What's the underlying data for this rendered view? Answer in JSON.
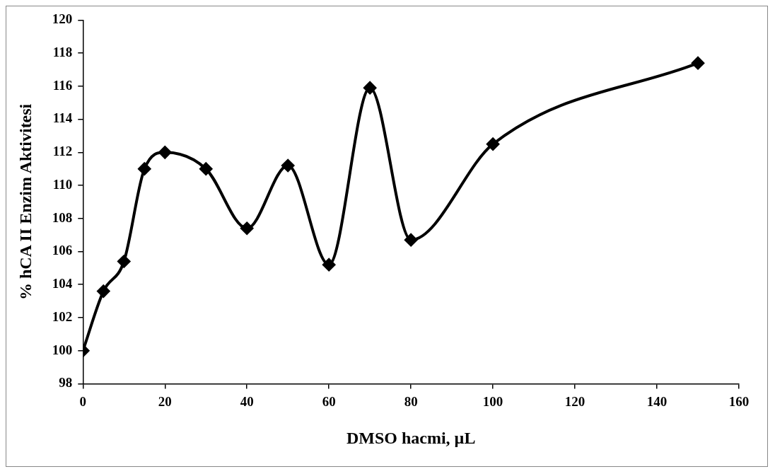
{
  "chart_data": {
    "type": "line",
    "xlabel": "DMSO hacmi, µL",
    "ylabel": "% hCA II Enzim Aktivitesi",
    "x": [
      0,
      5,
      10,
      15,
      20,
      30,
      40,
      50,
      60,
      70,
      80,
      100,
      150
    ],
    "series": [
      {
        "color": "#000000",
        "values": [
          100,
          103.6,
          105.4,
          111,
          112,
          111,
          107.4,
          111.2,
          105.2,
          115.9,
          106.7,
          112.5,
          117.4
        ]
      }
    ],
    "xlim": [
      0,
      160
    ],
    "xticks": [
      0,
      20,
      40,
      60,
      80,
      100,
      120,
      140,
      160
    ],
    "ylim": [
      98,
      120
    ],
    "yticks": [
      98,
      100,
      102,
      104,
      106,
      108,
      110,
      112,
      114,
      116,
      118,
      120
    ],
    "grid": false,
    "legend": false,
    "marker": "diamond",
    "line_style": "solid"
  }
}
